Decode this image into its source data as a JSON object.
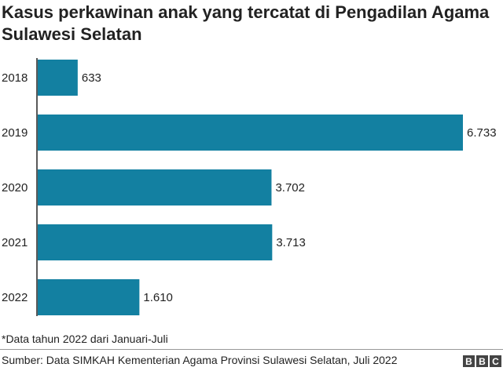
{
  "chart_data": {
    "type": "bar",
    "orientation": "horizontal",
    "title": "Kasus perkawinan anak yang tercatat di Pengadilan Agama Sulawesi Selatan",
    "categories": [
      "2018",
      "2019",
      "2020",
      "2021",
      "2022"
    ],
    "values": [
      633,
      6733,
      3702,
      3713,
      1610
    ],
    "data_labels": [
      "633",
      "6.733",
      "3.702",
      "3.713",
      "1.610"
    ],
    "xlim": [
      0,
      6733
    ],
    "grid": false,
    "bar_color": "#1380A1",
    "note": "*Data tahun 2022 dari Januari-Juli",
    "source": "Sumber: Data SIMKAH Kementerian Agama Provinsi Sulawesi Selatan, Juli 2022"
  },
  "logo": {
    "letters": [
      "B",
      "B",
      "C"
    ]
  }
}
